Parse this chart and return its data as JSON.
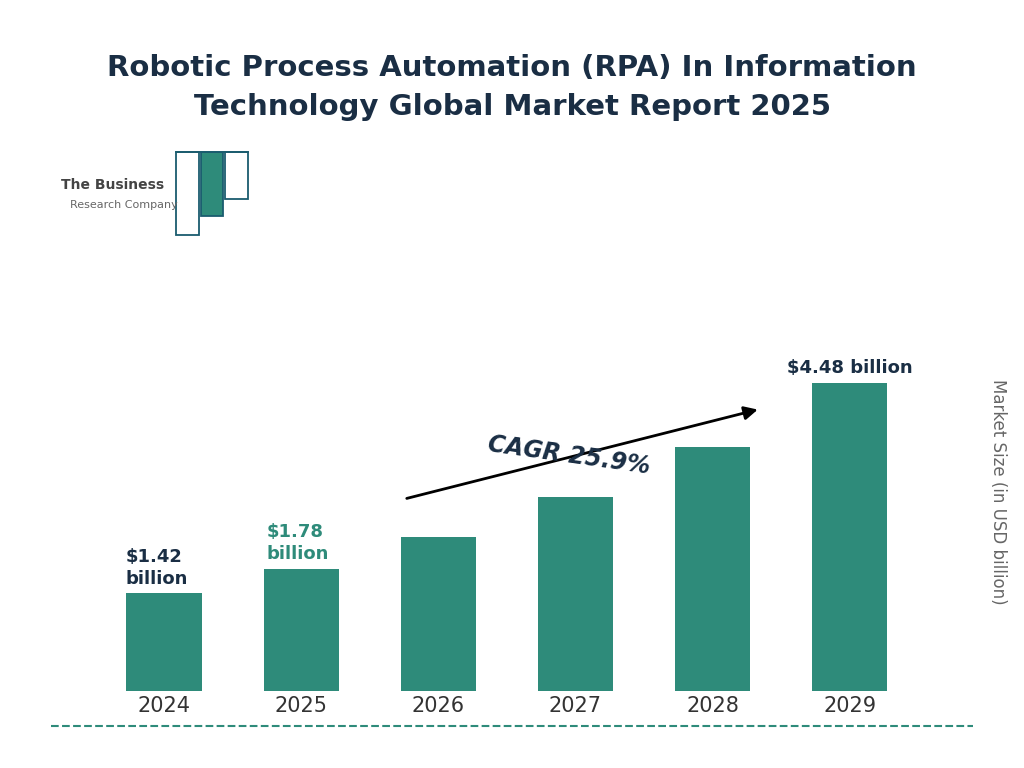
{
  "title": "Robotic Process Automation (RPA) In Information\nTechnology Global Market Report 2025",
  "years": [
    "2024",
    "2025",
    "2026",
    "2027",
    "2028",
    "2029"
  ],
  "values": [
    1.42,
    1.78,
    2.24,
    2.82,
    3.55,
    4.48
  ],
  "bar_color": "#2e8b7a",
  "title_color": "#1a2e44",
  "label_2024_color": "#1a2e44",
  "label_2025_color": "#2e8b7a",
  "label_2029_color": "#1a2e44",
  "cagr_text": "CAGR 25.9%",
  "ylabel": "Market Size (in USD billion)",
  "background_color": "#ffffff",
  "border_color": "#2e8b7a",
  "teal_dark": "#1a5c6e",
  "teal_green": "#2e8b7a"
}
